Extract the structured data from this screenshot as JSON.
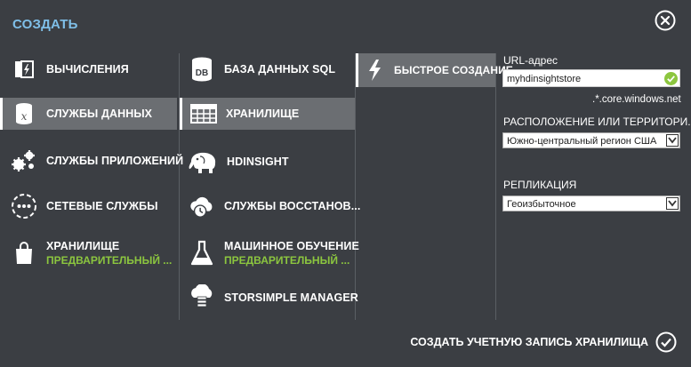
{
  "header": {
    "title": "СОЗДАТЬ",
    "close_icon": "close-icon"
  },
  "col1": [
    {
      "label": "ВЫЧИСЛЕНИЯ",
      "icon": "compute-icon"
    },
    {
      "label": "СЛУЖБЫ ДАННЫХ",
      "icon": "data-services-icon",
      "selected": true
    },
    {
      "label": "СЛУЖБЫ ПРИЛОЖЕНИЙ",
      "icon": "gears-icon"
    },
    {
      "label": "СЕТЕВЫЕ СЛУЖБЫ",
      "icon": "network-icon"
    },
    {
      "label": "ХРАНИЛИЩЕ",
      "sub": "ПРЕДВАРИТЕЛЬНЫЙ ...",
      "icon": "store-bag-icon"
    }
  ],
  "col2": [
    {
      "label": "БАЗА ДАННЫХ SQL",
      "icon": "database-icon"
    },
    {
      "label": "ХРАНИЛИЩЕ",
      "icon": "storage-table-icon",
      "selected": true
    },
    {
      "label": "HDINSIGHT",
      "icon": "elephant-icon"
    },
    {
      "label": "СЛУЖБЫ ВОССТАНОВ...",
      "icon": "recovery-cloud-icon"
    },
    {
      "label": "МАШИННОЕ ОБУЧЕНИЕ",
      "sub": "ПРЕДВАРИТЕЛЬНЫЙ ...",
      "icon": "flask-icon"
    },
    {
      "label": "STORSIMPLE MANAGER",
      "icon": "storsimple-icon"
    }
  ],
  "col3": [
    {
      "label": "БЫСТРОЕ СОЗДАНИЕ",
      "icon": "lightning-icon",
      "selected": true
    }
  ],
  "form": {
    "url_label": "URL-адрес",
    "url_value": "myhdinsightstore",
    "url_suffix": ".*.core.windows.net",
    "location_label": "РАСПОЛОЖЕНИЕ ИЛИ ТЕРРИТОРИ...",
    "location_value": "Южно-центральный регион США",
    "replication_label": "РЕПЛИКАЦИЯ",
    "replication_value": "Геоизбыточное"
  },
  "footer": {
    "create_label": "СОЗДАТЬ УЧЕТНУЮ ЗАПИСЬ ХРАНИЛИЩА"
  },
  "colors": {
    "accent_blue": "#7fbfe8",
    "accent_green": "#8cc63f",
    "background": "#3b3e43",
    "selected": "#6b6e72"
  }
}
